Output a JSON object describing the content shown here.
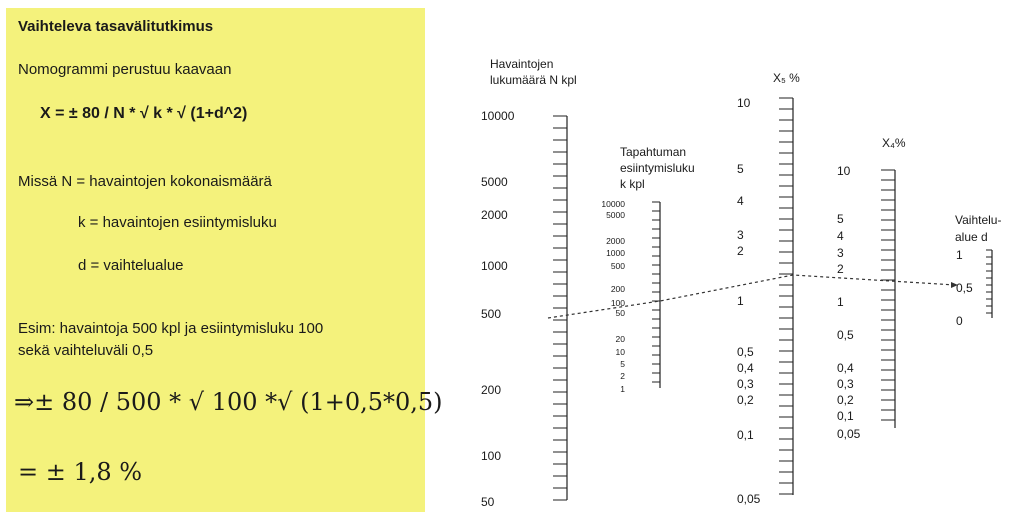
{
  "note": {
    "title": "Vaihteleva tasavälitutkimus",
    "intro": "Nomogrammi perustuu kaavaan",
    "formula": "X  =  ± 80 / N * √ k * √ (1+d^2)",
    "definition_n": "Missä N = havaintojen kokonaismäärä",
    "definition_k": "k = havaintojen esiintymisluku",
    "definition_d": "d = vaihtelualue",
    "example_line1": "Esim: havaintoja 500 kpl ja esiintymisluku 100",
    "example_line2": "sekä vaihteluväli 0,5",
    "calculation": "⇒± 80 / 500 * √ 100 *√ (1+0,5*0,5)",
    "result": "= ± 1,8 %"
  },
  "nomogram": {
    "axis_n": {
      "title_lines": [
        "Havaintojen",
        "lukumäärä N kpl"
      ],
      "labels": [
        "10000",
        "5000",
        "2000",
        "1000",
        "500",
        "200",
        "100",
        "50"
      ]
    },
    "axis_k": {
      "title_lines": [
        "Tapahtuman",
        "esiintymisluku",
        "k kpl"
      ],
      "labels": [
        "10000",
        "5000",
        "2000",
        "1000",
        "500",
        "200",
        "100",
        "50",
        "20",
        "10",
        "5",
        "2",
        "1"
      ]
    },
    "axis_x5": {
      "title": "X₅ %",
      "labels": [
        "10",
        "5",
        "4",
        "3",
        "2",
        "1",
        "0,5",
        "0,4",
        "0,3",
        "0,2",
        "0,1",
        "0,05"
      ]
    },
    "axis_x4": {
      "title": "X₄%",
      "labels": [
        "10",
        "5",
        "4",
        "3",
        "2",
        "1",
        "0,5",
        "0,4",
        "0,3",
        "0,2",
        "0,1",
        "0,05"
      ]
    },
    "axis_d": {
      "title_lines": [
        "Vaihtelu-",
        "alue d"
      ],
      "labels": [
        "1",
        "0,5",
        "0"
      ]
    },
    "example_path": {
      "n": "500",
      "k": "100",
      "d": "0,5"
    },
    "colors": {
      "note_background": "#f4f27c",
      "ink": "#1a1a1a"
    }
  }
}
